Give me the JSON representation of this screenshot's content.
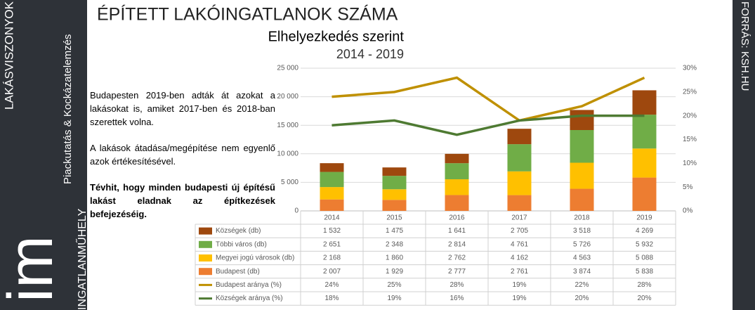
{
  "branding": {
    "top": "LAKÁSVISZONYOK",
    "tagline": "Piackutatás & Kockázatelemzés",
    "name": "INGATLANMŰHELY",
    "logo": "im"
  },
  "source": "FORRÁS: KSH.HU",
  "side_text": [
    "Budapesten 2019-ben adták át azokat a lakásokat is, amiket 2017-ben és 2018-ban szerettek volna.",
    "A lakások átadása/megépítése nem egyenlő azok értékesítésével.",
    "Tévhit, hogy minden budapesti új építésű lakást eladnak az építkezések befejezéséig."
  ],
  "chart_data": {
    "type": "bar",
    "stacked": true,
    "title": "ÉPÍTETT LAKÓINGATLANOK SZÁMA",
    "subtitle": "Elhelyezkedés szerint",
    "period": "2014 - 2019",
    "categories": [
      "2014",
      "2015",
      "2016",
      "2017",
      "2018",
      "2019"
    ],
    "series": [
      {
        "name": "Községek (db)",
        "color": "#9e480e",
        "values": [
          1532,
          1475,
          1641,
          2705,
          3518,
          4269
        ],
        "value_labels": [
          "1 532",
          "1 475",
          "1 641",
          "2 705",
          "3 518",
          "4 269"
        ]
      },
      {
        "name": "Többi város (db)",
        "color": "#70ad47",
        "values": [
          2651,
          2348,
          2814,
          4761,
          5726,
          5932
        ],
        "value_labels": [
          "2 651",
          "2 348",
          "2 814",
          "4 761",
          "5 726",
          "5 932"
        ]
      },
      {
        "name": "Megyei jogú városok (db)",
        "color": "#ffc000",
        "values": [
          2168,
          1860,
          2762,
          4162,
          4563,
          5088
        ],
        "value_labels": [
          "2 168",
          "1 860",
          "2 762",
          "4 162",
          "4 563",
          "5 088"
        ]
      },
      {
        "name": "Budapest (db)",
        "color": "#ed7d31",
        "values": [
          2007,
          1929,
          2777,
          2761,
          3874,
          5838
        ],
        "value_labels": [
          "2 007",
          "1 929",
          "2 777",
          "2 761",
          "3 874",
          "5 838"
        ]
      },
      {
        "name": "Budapest aránya (%)",
        "type": "line",
        "axis": "y2",
        "color": "#bf9000",
        "values": [
          24,
          25,
          28,
          19,
          22,
          28
        ],
        "value_labels": [
          "24%",
          "25%",
          "28%",
          "19%",
          "22%",
          "28%"
        ]
      },
      {
        "name": "Községek aránya (%)",
        "type": "line",
        "axis": "y2",
        "color": "#4e7a32",
        "values": [
          18,
          19,
          16,
          19,
          20,
          20
        ],
        "value_labels": [
          "18%",
          "19%",
          "16%",
          "19%",
          "20%",
          "20%"
        ]
      }
    ],
    "ylim": [
      0,
      25000
    ],
    "yticks": [
      0,
      {
        "value": 5000,
        "label": "5 000"
      },
      {
        "value": 10000,
        "label": "10 000"
      },
      {
        "value": 15000,
        "label": "15 000"
      },
      {
        "value": 20000,
        "label": "20 000"
      },
      {
        "value": 25000,
        "label": "25 000"
      }
    ],
    "y2lim": [
      0,
      30
    ],
    "y2ticks": [
      {
        "value": 0,
        "label": "0%"
      },
      {
        "value": 5,
        "label": "5%"
      },
      {
        "value": 10,
        "label": "10%"
      },
      {
        "value": 15,
        "label": "15%"
      },
      {
        "value": 20,
        "label": "20%"
      },
      {
        "value": 25,
        "label": "25%"
      },
      {
        "value": 30,
        "label": "30%"
      }
    ],
    "grid": true
  }
}
